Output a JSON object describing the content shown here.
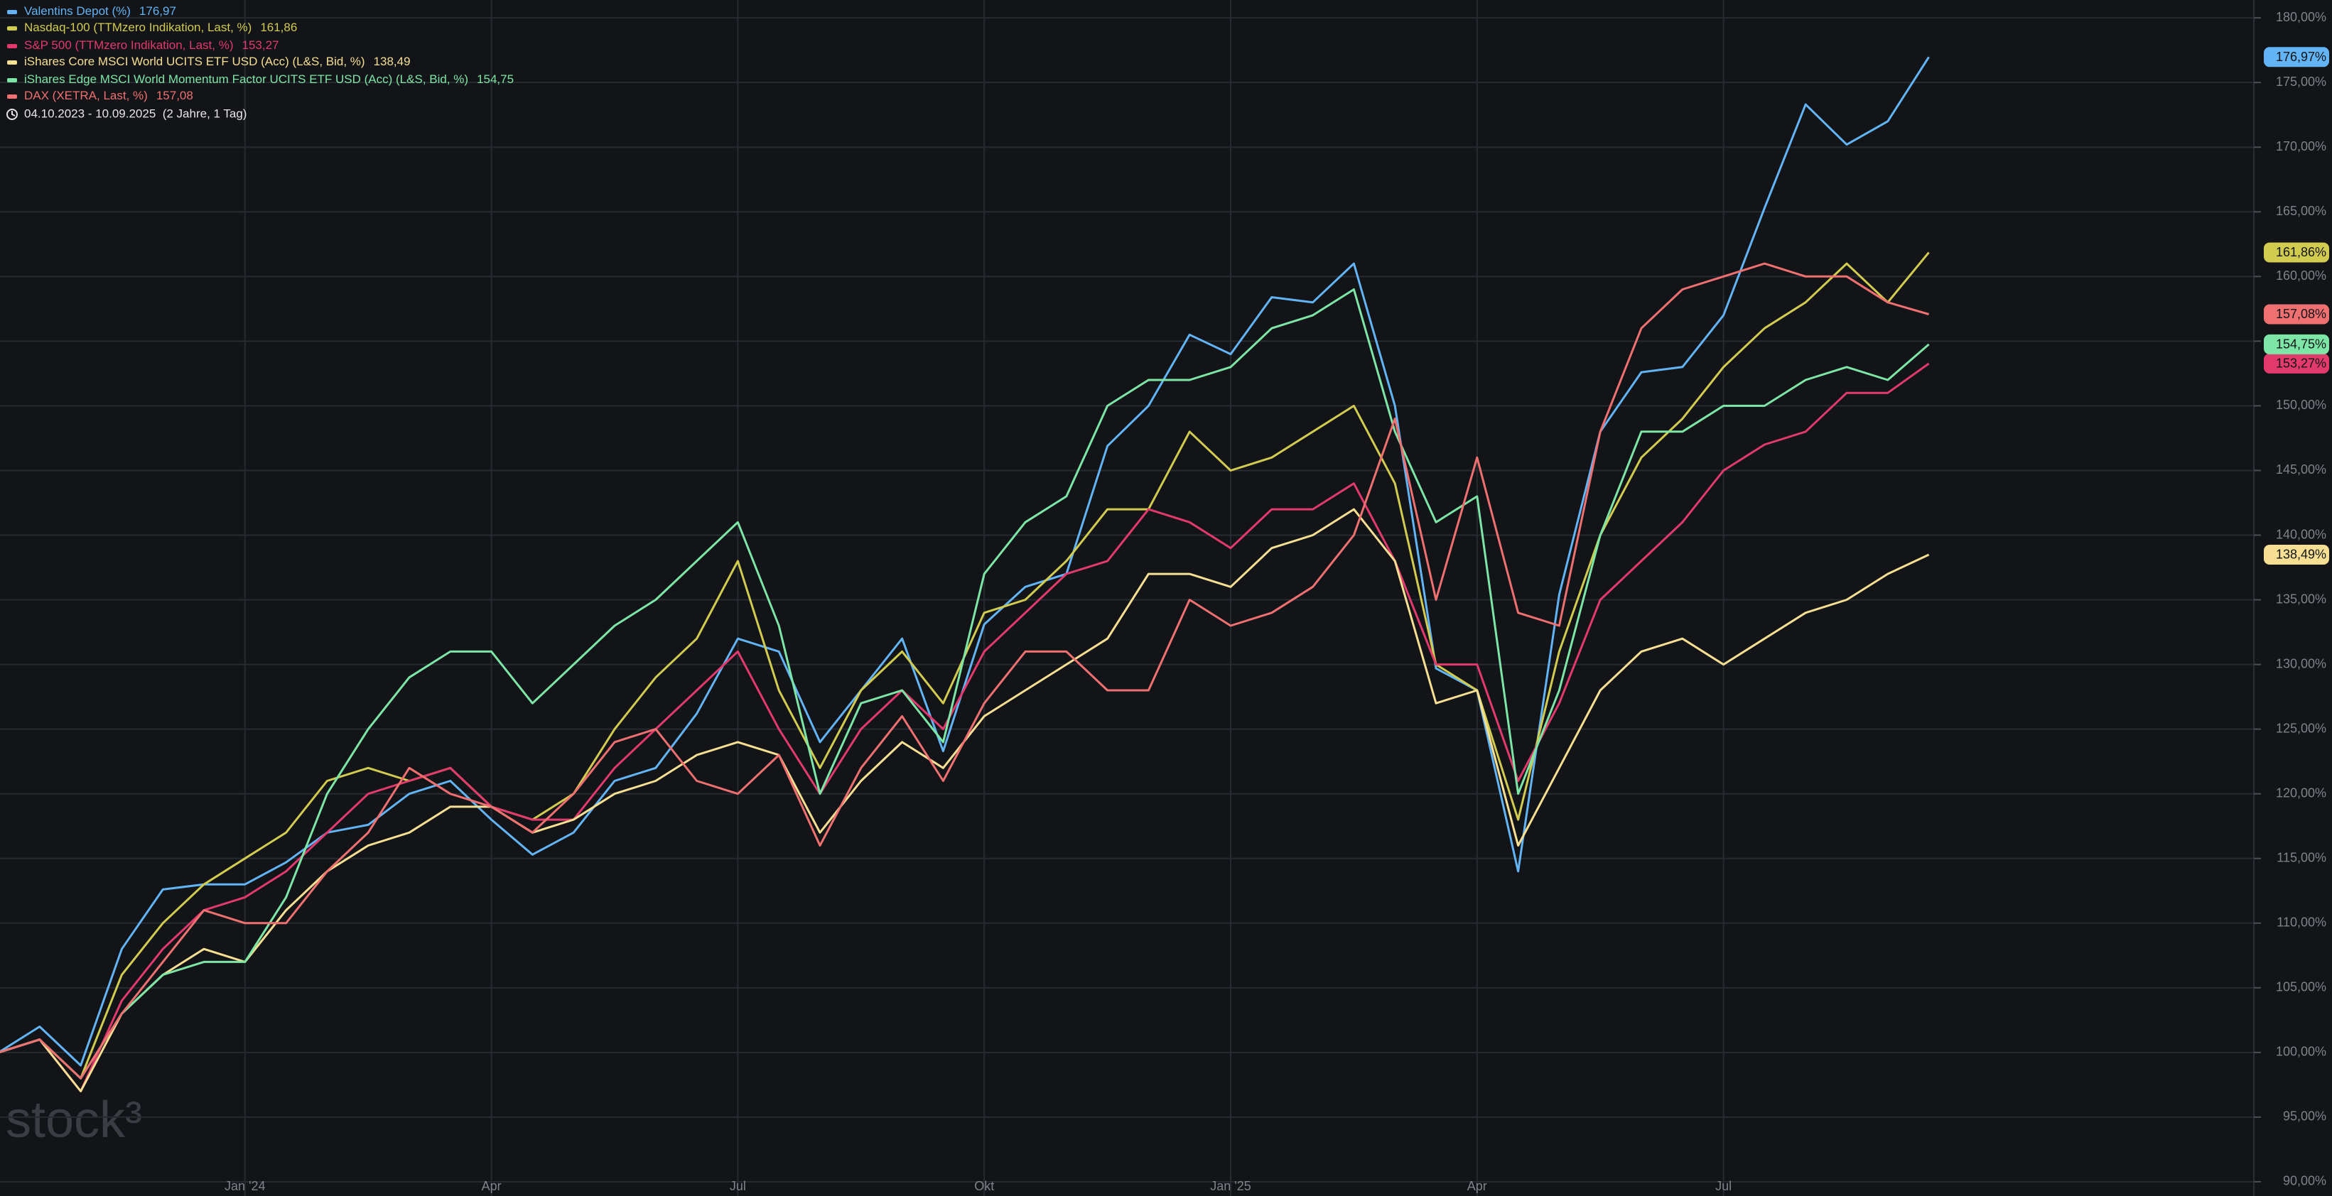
{
  "chart_data": {
    "type": "line",
    "range_label": "04.10.2023 - 10.09.2025  (2 Jahre, 1 Tag)",
    "watermark": "stock³",
    "categories": [
      null,
      null,
      null,
      null,
      null,
      null,
      "Jan '24",
      null,
      null,
      null,
      null,
      null,
      "Apr",
      null,
      null,
      null,
      null,
      null,
      "Jul",
      null,
      null,
      null,
      null,
      null,
      "Okt",
      null,
      null,
      null,
      null,
      null,
      "Jan '25",
      null,
      null,
      null,
      null,
      null,
      "Apr",
      null,
      null,
      null,
      null,
      null,
      "Jul",
      null,
      null,
      null,
      null,
      null
    ],
    "ylim": [
      88.9,
      181.38
    ],
    "yticks": [
      {
        "value": 90,
        "label": "90,00%"
      },
      {
        "value": 95,
        "label": "95,00%"
      },
      {
        "value": 100,
        "label": "100,00%"
      },
      {
        "value": 105,
        "label": "105,00%"
      },
      {
        "value": 110,
        "label": "110,00%"
      },
      {
        "value": 115,
        "label": "115,00%"
      },
      {
        "value": 120,
        "label": "120,00%"
      },
      {
        "value": 125,
        "label": "125,00%"
      },
      {
        "value": 130,
        "label": "130,00%"
      },
      {
        "value": 135,
        "label": "135,00%"
      },
      {
        "value": 140,
        "label": "140,00%"
      },
      {
        "value": 145,
        "label": "145,00%"
      },
      {
        "value": 150,
        "label": "150,00%"
      },
      {
        "value": 155,
        "label": "155,00%"
      },
      {
        "value": 160,
        "label": "160,00%"
      },
      {
        "value": 165,
        "label": "165,00%"
      },
      {
        "value": 170,
        "label": "170,00%"
      },
      {
        "value": 175,
        "label": "175,00%"
      },
      {
        "value": 180,
        "label": "180,00%"
      }
    ],
    "grid": true,
    "series": [
      {
        "name": "Valentins Depot (%)",
        "last_label": "176,97",
        "end_tag": "176,97%",
        "color": "#62b4f4",
        "values": [
          100,
          102,
          99,
          108,
          112.6,
          113,
          113,
          114.7,
          117,
          117.6,
          120,
          121,
          118,
          115.3,
          117,
          121,
          122,
          126.2,
          132,
          131,
          124,
          128,
          132,
          123.3,
          133.1,
          136,
          137,
          146.9,
          150,
          155.5,
          154,
          158.4,
          158,
          161,
          150,
          129.7,
          128,
          114,
          135.4,
          148,
          152.6,
          153,
          157,
          165.3,
          173.3,
          170.2,
          172,
          176.97
        ]
      },
      {
        "name": "Nasdaq-100 (TTMzero Indikation, Last, %)",
        "last_label": "161,86",
        "end_tag": "161,86%",
        "color": "#d1cb4f",
        "values": [
          100,
          101,
          98,
          106,
          110,
          113,
          115,
          117,
          121,
          122,
          121,
          122,
          119,
          118,
          120,
          125,
          129,
          132,
          138,
          128,
          122,
          128,
          131,
          127,
          134,
          135,
          138,
          142,
          142,
          148,
          145,
          146,
          148,
          150,
          144,
          130,
          128,
          118,
          131,
          140,
          146,
          149,
          153,
          156,
          158,
          161,
          158,
          161.86
        ]
      },
      {
        "name": "S&P 500 (TTMzero Indikation, Last, %)",
        "last_label": "153,27",
        "end_tag": "153,27%",
        "color": "#e23a6d",
        "values": [
          100,
          101,
          97,
          104,
          108,
          111,
          112,
          114,
          117,
          120,
          121,
          122,
          119,
          118,
          118,
          122,
          125,
          128,
          131,
          125,
          120,
          125,
          128,
          125,
          131,
          134,
          137,
          138,
          142,
          141,
          139,
          142,
          142,
          144,
          138,
          130,
          130,
          121,
          127,
          135,
          138,
          141,
          145,
          147,
          148,
          151,
          151,
          153.27
        ]
      },
      {
        "name": "iShares Core MSCI World UCITS ETF USD (Acc) (L&S, Bid, %)",
        "last_label": "138,49",
        "end_tag": "138,49%",
        "color": "#f6df92",
        "values": [
          100,
          101,
          97,
          103,
          106,
          108,
          107,
          111,
          114,
          116,
          117,
          119,
          119,
          117,
          118,
          120,
          121,
          123,
          124,
          123,
          117,
          121,
          124,
          122,
          126,
          128,
          130,
          132,
          137,
          137,
          136,
          139,
          140,
          142,
          138,
          127,
          128,
          116,
          122,
          128,
          131,
          132,
          130,
          132,
          134,
          135,
          137,
          138.49
        ]
      },
      {
        "name": "iShares Edge MSCI World Momentum Factor UCITS ETF USD (Acc) (L&S, Bid, %)",
        "last_label": "154,75",
        "end_tag": "154,75%",
        "color": "#7de6a6",
        "values": [
          100,
          101,
          98,
          103,
          106,
          107,
          107,
          112,
          120,
          125,
          129,
          131,
          131,
          127,
          130,
          133,
          135,
          138,
          141,
          133,
          120,
          127,
          128,
          124,
          137,
          141,
          143,
          150,
          152,
          152,
          153,
          156,
          157,
          159,
          148,
          141,
          143,
          120,
          128,
          140,
          148,
          148,
          150,
          150,
          152,
          153,
          152,
          154.75
        ]
      },
      {
        "name": "DAX (XETRA, Last, %)",
        "last_label": "157,08",
        "end_tag": "157,08%",
        "color": "#ef7070",
        "values": [
          100,
          101,
          98,
          103,
          107,
          111,
          110,
          110,
          114,
          117,
          122,
          120,
          119,
          117,
          120,
          124,
          125,
          121,
          120,
          123,
          116,
          122,
          126,
          121,
          127,
          131,
          131,
          128,
          128,
          135,
          133,
          134,
          136,
          140,
          149,
          135,
          146,
          134,
          133,
          148,
          156,
          159,
          160,
          161,
          160,
          160,
          158,
          157.08
        ]
      }
    ]
  }
}
